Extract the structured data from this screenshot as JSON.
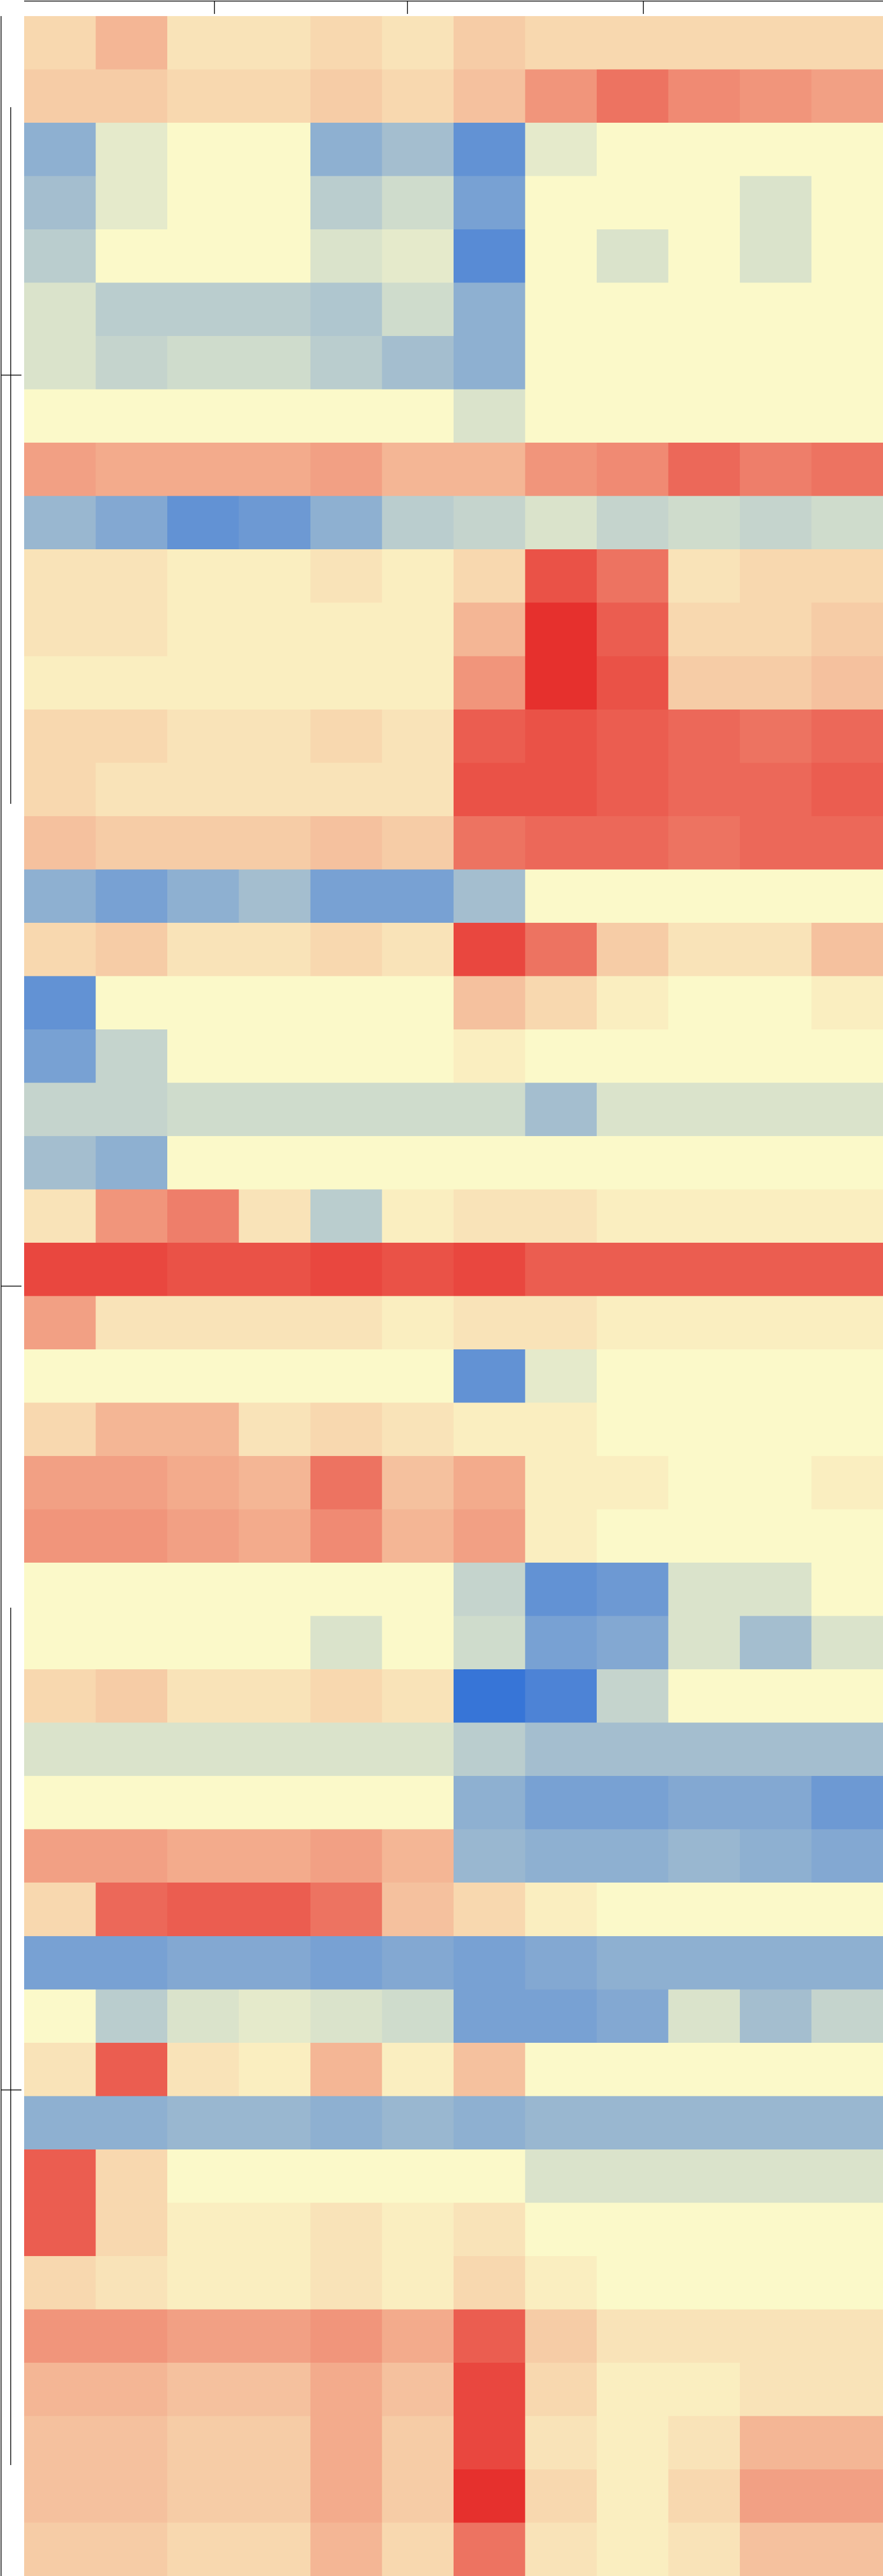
{
  "chart_data": {
    "type": "heatmap",
    "zlim": [
      -2,
      2
    ],
    "colors": [
      "#2166d9",
      "#fbf9c9",
      "#e41a1c"
    ],
    "values": [
      [
        0.3,
        0.6,
        0.2,
        0.2,
        0.3,
        0.2,
        0.4,
        0.3,
        0.3,
        0.3,
        0.3,
        0.3
      ],
      [
        0.4,
        0.4,
        0.3,
        0.3,
        0.4,
        0.3,
        0.5,
        0.9,
        1.2,
        1.0,
        0.9,
        0.8
      ],
      [
        -1.0,
        -0.2,
        0,
        0,
        -1.0,
        -0.8,
        -1.4,
        -0.2,
        0,
        0,
        0,
        0
      ],
      [
        -0.8,
        -0.2,
        0,
        0,
        -0.6,
        -0.4,
        -1.2,
        0,
        0,
        0,
        -0.3,
        0
      ],
      [
        -0.6,
        0,
        0,
        0,
        -0.3,
        -0.2,
        -1.5,
        0,
        -0.3,
        0,
        -0.3,
        0
      ],
      [
        -0.3,
        -0.6,
        -0.6,
        -0.6,
        -0.7,
        -0.4,
        -1.0,
        0,
        0,
        0,
        0,
        0
      ],
      [
        -0.3,
        -0.5,
        -0.4,
        -0.4,
        -0.6,
        -0.8,
        -1.0,
        0,
        0,
        0,
        0,
        0
      ],
      [
        0,
        0,
        0,
        0,
        0,
        0,
        -0.3,
        0,
        0,
        0,
        0,
        0
      ],
      [
        0.8,
        0.7,
        0.7,
        0.7,
        0.8,
        0.6,
        0.6,
        0.9,
        1.0,
        1.3,
        1.1,
        1.2
      ],
      [
        -0.9,
        -1.1,
        -1.4,
        -1.3,
        -1.0,
        -0.6,
        -0.5,
        -0.3,
        -0.5,
        -0.4,
        -0.5,
        -0.4
      ],
      [
        0.2,
        0.2,
        0.1,
        0.1,
        0.2,
        0.1,
        0.3,
        1.5,
        1.2,
        0.2,
        0.3,
        0.3
      ],
      [
        0.2,
        0.2,
        0.1,
        0.1,
        0.1,
        0.1,
        0.6,
        1.8,
        1.4,
        0.3,
        0.3,
        0.4
      ],
      [
        0.1,
        0.1,
        0.1,
        0.1,
        0.1,
        0.1,
        0.9,
        1.8,
        1.5,
        0.4,
        0.4,
        0.5
      ],
      [
        0.3,
        0.3,
        0.2,
        0.2,
        0.3,
        0.2,
        1.4,
        1.5,
        1.4,
        1.3,
        1.2,
        1.3
      ],
      [
        0.3,
        0.2,
        0.2,
        0.2,
        0.2,
        0.2,
        1.5,
        1.5,
        1.4,
        1.3,
        1.3,
        1.4
      ],
      [
        0.5,
        0.4,
        0.4,
        0.4,
        0.5,
        0.4,
        1.2,
        1.3,
        1.3,
        1.2,
        1.3,
        1.3
      ],
      [
        -1.0,
        -1.2,
        -1.0,
        -0.8,
        -1.2,
        -1.2,
        -0.8,
        0,
        0,
        0,
        0,
        0
      ],
      [
        0.3,
        0.4,
        0.2,
        0.2,
        0.3,
        0.2,
        1.6,
        1.2,
        0.4,
        0.2,
        0.2,
        0.5
      ],
      [
        -1.4,
        0,
        0,
        0,
        0,
        0,
        0.5,
        0.3,
        0.1,
        0,
        0,
        0.1
      ],
      [
        -1.2,
        -0.5,
        0,
        0,
        0,
        0,
        0.1,
        0,
        0,
        0,
        0,
        0
      ],
      [
        -0.5,
        -0.5,
        -0.4,
        -0.4,
        -0.4,
        -0.4,
        -0.4,
        -0.8,
        -0.3,
        -0.3,
        -0.3,
        -0.3
      ],
      [
        -0.8,
        -1.0,
        0,
        0,
        0,
        0,
        0,
        0,
        0,
        0,
        0,
        0
      ],
      [
        0.2,
        0.9,
        1.1,
        0.2,
        -0.6,
        0.1,
        0.2,
        0.2,
        0.1,
        0.1,
        0.1,
        0.1
      ],
      [
        1.6,
        1.6,
        1.5,
        1.5,
        1.6,
        1.5,
        1.6,
        1.4,
        1.4,
        1.4,
        1.4,
        1.4
      ],
      [
        0.8,
        0.2,
        0.2,
        0.2,
        0.2,
        0.1,
        0.2,
        0.2,
        0.1,
        0.1,
        0.1,
        0.1
      ],
      [
        0,
        0,
        0,
        0,
        0,
        0,
        -1.4,
        -0.2,
        0,
        0,
        0,
        0
      ],
      [
        0.3,
        0.6,
        0.6,
        0.2,
        0.3,
        0.2,
        0.1,
        0.1,
        0,
        0,
        0,
        0
      ],
      [
        0.8,
        0.8,
        0.7,
        0.6,
        1.2,
        0.5,
        0.7,
        0.1,
        0.1,
        0,
        0,
        0.1
      ],
      [
        0.9,
        0.9,
        0.8,
        0.7,
        1.0,
        0.6,
        0.8,
        0.1,
        0,
        0,
        0,
        0
      ],
      [
        0,
        0,
        0,
        0,
        0,
        0,
        -0.5,
        -1.4,
        -1.3,
        -0.3,
        -0.3,
        0
      ],
      [
        0,
        0,
        0,
        0,
        -0.3,
        0,
        -0.4,
        -1.2,
        -1.1,
        -0.3,
        -0.8,
        -0.3
      ],
      [
        0.3,
        0.4,
        0.2,
        0.2,
        0.3,
        0.2,
        -1.8,
        -1.6,
        -0.5,
        0,
        0,
        0
      ],
      [
        -0.3,
        -0.3,
        -0.3,
        -0.3,
        -0.3,
        -0.3,
        -0.6,
        -0.8,
        -0.8,
        -0.8,
        -0.8,
        -0.8
      ],
      [
        0,
        0,
        0,
        0,
        0,
        0,
        -1.0,
        -1.2,
        -1.2,
        -1.1,
        -1.1,
        -1.3
      ],
      [
        0.8,
        0.8,
        0.7,
        0.7,
        0.8,
        0.6,
        -0.9,
        -1.0,
        -1.0,
        -0.9,
        -1.0,
        -1.1
      ],
      [
        0.3,
        1.3,
        1.4,
        1.4,
        1.2,
        0.5,
        0.3,
        0.1,
        0,
        0,
        0,
        0
      ],
      [
        -1.2,
        -1.2,
        -1.1,
        -1.1,
        -1.2,
        -1.1,
        -1.2,
        -1.1,
        -1.0,
        -1.0,
        -1.0,
        -1.0
      ],
      [
        0,
        -0.6,
        -0.3,
        -0.2,
        -0.3,
        -0.4,
        -1.2,
        -1.2,
        -1.1,
        -0.3,
        -0.8,
        -0.5
      ],
      [
        0.2,
        1.4,
        0.2,
        0.1,
        0.6,
        0.1,
        0.5,
        0,
        0,
        0,
        0,
        0
      ],
      [
        -1.0,
        -1.0,
        -0.9,
        -0.9,
        -1.0,
        -0.9,
        -1.0,
        -0.9,
        -0.9,
        -0.9,
        -0.9,
        -0.9
      ],
      [
        1.4,
        0.3,
        0,
        0,
        0,
        0,
        0,
        -0.3,
        -0.3,
        -0.3,
        -0.3,
        -0.3
      ],
      [
        1.4,
        0.3,
        0.1,
        0.1,
        0.2,
        0.1,
        0.2,
        0,
        0,
        0,
        0,
        0
      ],
      [
        0.3,
        0.2,
        0.1,
        0.1,
        0.2,
        0.1,
        0.3,
        0.1,
        0,
        0,
        0,
        0
      ],
      [
        0.9,
        0.9,
        0.8,
        0.8,
        0.9,
        0.7,
        1.4,
        0.4,
        0.2,
        0.2,
        0.2,
        0.2
      ],
      [
        0.6,
        0.6,
        0.5,
        0.5,
        0.7,
        0.5,
        1.6,
        0.3,
        0.1,
        0.1,
        0.2,
        0.2
      ],
      [
        0.5,
        0.5,
        0.4,
        0.4,
        0.7,
        0.4,
        1.6,
        0.2,
        0.1,
        0.2,
        0.6,
        0.6
      ],
      [
        0.5,
        0.5,
        0.4,
        0.4,
        0.7,
        0.4,
        1.8,
        0.3,
        0.1,
        0.3,
        0.8,
        0.8
      ],
      [
        0.4,
        0.4,
        0.3,
        0.3,
        0.6,
        0.3,
        1.2,
        0.2,
        0.1,
        0.2,
        0.5,
        0.5
      ]
    ]
  }
}
